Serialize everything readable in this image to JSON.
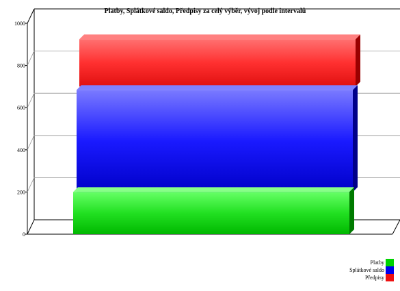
{
  "chart_data": {
    "type": "bar",
    "title": "Platby, Splátkové saldo, Předpisy za celý výběr, vývoj podle intervalů",
    "categories": [
      ""
    ],
    "series": [
      {
        "name": "Platby",
        "values": [
          200
        ],
        "color": "#00d400"
      },
      {
        "name": "Splátkové saldo",
        "values": [
          700
        ],
        "color": "#0000ee"
      },
      {
        "name": "Předpisy",
        "values": [
          950
        ],
        "color": "#ee1111"
      }
    ],
    "ylim": [
      0,
      1000
    ],
    "yticks": [
      0,
      200,
      400,
      600,
      800,
      1000
    ],
    "grid": true,
    "legend": "bottom-right",
    "style": "3d-stacked-depth"
  }
}
